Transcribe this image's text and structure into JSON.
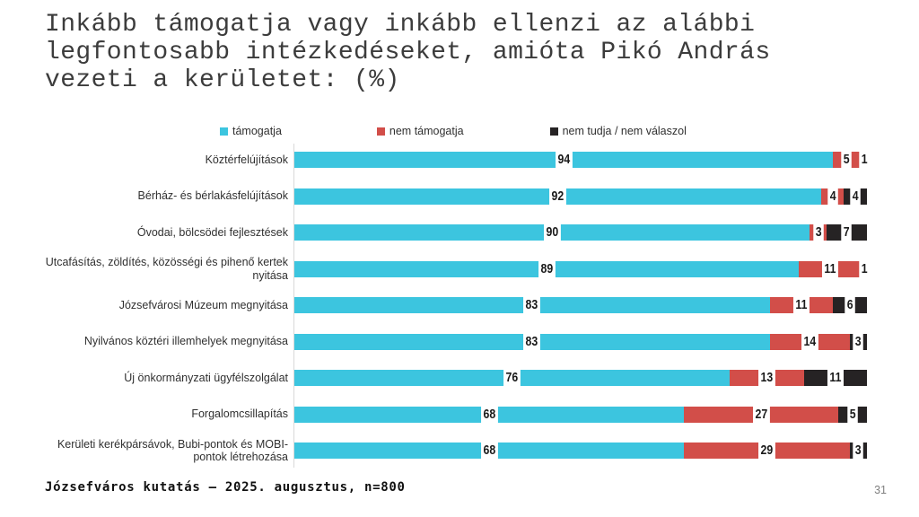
{
  "title": {
    "text": "Inkább támogatja vagy inkább ellenzi az alábbi\nlegfontosabb intézkedéseket, amióta Pikó András\nvezeti a kerületet: (%)"
  },
  "colors": {
    "support": "#3cc5df",
    "oppose": "#d24e49",
    "dont_know": "#262324",
    "axis_line": "#d9d9d9",
    "title_text": "#3c3c3c",
    "page_number": "#7f7f7f"
  },
  "chart_data": {
    "type": "bar",
    "orientation": "horizontal",
    "stacked": true,
    "normalized_to_100": true,
    "unit": "%",
    "grid": false,
    "axes": "none (values shown as data labels on segments)",
    "legend_position": "top",
    "categories": [
      "Köztérfelújítások",
      "Bérház- és bérlakásfelújítások",
      "Óvodai, bölcsödei fejlesztések",
      "Utcafásítás, zöldítés, közösségi és pihenő kertek nyitása",
      "Józsefvárosi Múzeum megnyitása",
      "Nyilvános köztéri illemhelyek megnyitása",
      "Új önkormányzati ügyfélszolgálat",
      "Forgalomcsillapítás",
      "Kerületi kerékpársávok, Bubi-pontok és MOBI-pontok létrehozása"
    ],
    "series": [
      {
        "name": "támogatja",
        "color": "#3cc5df",
        "values": [
          94,
          92,
          90,
          89,
          83,
          83,
          76,
          68,
          68
        ]
      },
      {
        "name": "nem támogatja",
        "color": "#d24e49",
        "values": [
          5,
          4,
          3,
          11,
          11,
          14,
          13,
          27,
          29
        ]
      },
      {
        "name": "nem tudja / nem válaszol",
        "color": "#262324",
        "values": [
          1,
          4,
          7,
          1,
          6,
          3,
          11,
          5,
          3
        ]
      }
    ]
  },
  "footer": {
    "source": "Józsefváros kutatás – 2025. augusztus, n=800",
    "page_number": "31"
  }
}
